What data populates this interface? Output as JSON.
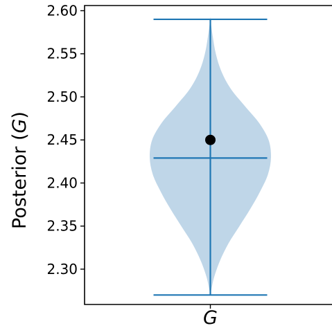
{
  "chart_data": {
    "type": "violin",
    "ylabel_text": "Posterior (",
    "ylabel_symbol": "G",
    "ylabel_close": ")",
    "categories": [
      "G"
    ],
    "ylim": [
      2.259,
      2.606
    ],
    "yticks": [
      2.3,
      2.35,
      2.4,
      2.45,
      2.5,
      2.55,
      2.6
    ],
    "ytick_labels": [
      "2.30",
      "2.35",
      "2.40",
      "2.45",
      "2.50",
      "2.55",
      "2.60"
    ],
    "violin": {
      "min": 2.27,
      "max": 2.59,
      "median": 2.429,
      "point": 2.45,
      "half_width_max": 0.49,
      "density_profile": [
        [
          2.27,
          0.0
        ],
        [
          2.29,
          0.06
        ],
        [
          2.31,
          0.16
        ],
        [
          2.33,
          0.3
        ],
        [
          2.35,
          0.48
        ],
        [
          2.37,
          0.66
        ],
        [
          2.39,
          0.82
        ],
        [
          2.41,
          0.95
        ],
        [
          2.43,
          1.0
        ],
        [
          2.45,
          0.96
        ],
        [
          2.47,
          0.8
        ],
        [
          2.49,
          0.56
        ],
        [
          2.51,
          0.33
        ],
        [
          2.53,
          0.18
        ],
        [
          2.55,
          0.09
        ],
        [
          2.57,
          0.04
        ],
        [
          2.59,
          0.0
        ]
      ]
    },
    "grid": false,
    "colors": {
      "body": "#bfd6e8",
      "lines": "#1f77b4",
      "point": "#000000"
    }
  }
}
